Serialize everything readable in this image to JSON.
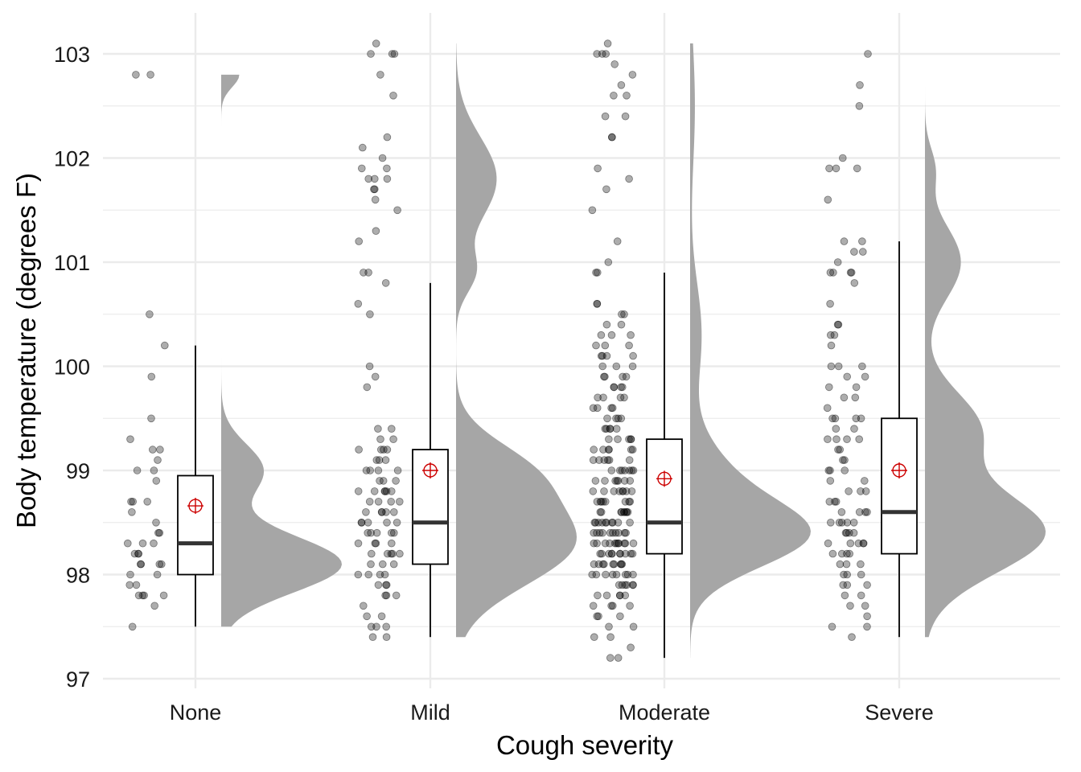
{
  "chart_data": {
    "type": "raincloud",
    "xlabel": "Cough severity",
    "ylabel": "Body temperature (degrees F)",
    "ylim": [
      97,
      103.2
    ],
    "yticks": [
      97,
      98,
      99,
      100,
      101,
      102,
      103
    ],
    "ytick_labels": [
      "97",
      "98",
      "99",
      "100",
      "101",
      "102",
      "103"
    ],
    "grid": true,
    "categories": [
      "None",
      "Mild",
      "Moderate",
      "Severe"
    ],
    "colors": {
      "density": "#a6a6a6",
      "points": "#000000",
      "box_stroke": "#000000",
      "mean_marker": "#cc0000",
      "grid": "#ebebeb"
    },
    "groups": [
      {
        "name": "None",
        "box": {
          "whisker_low": 97.5,
          "q1": 98.0,
          "median": 98.3,
          "q3": 98.95,
          "whisker_high": 100.2
        },
        "mean": 98.66,
        "density": {
          "range": [
            97.5,
            102.8
          ],
          "peak": 98.1,
          "sd": 0.27,
          "secondary": [
            [
              99.0,
              0.35,
              0.25
            ],
            [
              102.8,
              0.15,
              0.12
            ]
          ]
        },
        "points": [
          102.8,
          102.8,
          100.5,
          100.2,
          99.9,
          99.5,
          99.3,
          99.2,
          99.2,
          99.1,
          99.0,
          99.0,
          98.9,
          98.7,
          98.7,
          98.7,
          98.6,
          98.5,
          98.4,
          98.4,
          98.3,
          98.3,
          98.3,
          98.2,
          98.2,
          98.2,
          98.1,
          98.1,
          98.1,
          98.1,
          98.0,
          98.0,
          97.9,
          97.9,
          97.8,
          97.8,
          97.8,
          97.8,
          97.7,
          97.5
        ]
      },
      {
        "name": "Mild",
        "box": {
          "whisker_low": 97.4,
          "q1": 98.1,
          "median": 98.5,
          "q3": 99.2,
          "whisker_high": 100.8
        },
        "mean": 99.0,
        "density": {
          "range": [
            97.4,
            103.1
          ],
          "peak": 98.3,
          "sd": 0.4,
          "secondary": [
            [
              101.8,
              0.35,
              0.4
            ],
            [
              100.9,
              0.15,
              0.2
            ],
            [
              99.0,
              0.5,
              0.3
            ]
          ]
        },
        "points": [
          103.1,
          103.0,
          103.0,
          103.0,
          102.8,
          102.6,
          102.2,
          102.1,
          102.0,
          101.9,
          101.9,
          101.8,
          101.8,
          101.8,
          101.7,
          101.7,
          101.6,
          101.5,
          101.3,
          101.2,
          100.9,
          100.9,
          100.8,
          100.6,
          100.5,
          100.0,
          99.9,
          99.8,
          99.4,
          99.4,
          99.3,
          99.3,
          99.2,
          99.2,
          99.2,
          99.2,
          99.1,
          99.1,
          99.1,
          99.0,
          99.0,
          99.0,
          99.0,
          98.9,
          98.9,
          98.9,
          98.8,
          98.8,
          98.8,
          98.8,
          98.8,
          98.8,
          98.7,
          98.7,
          98.7,
          98.7,
          98.6,
          98.6,
          98.6,
          98.6,
          98.6,
          98.5,
          98.5,
          98.5,
          98.5,
          98.5,
          98.4,
          98.4,
          98.4,
          98.4,
          98.4,
          98.3,
          98.3,
          98.3,
          98.3,
          98.2,
          98.2,
          98.2,
          98.2,
          98.2,
          98.1,
          98.1,
          98.1,
          98.0,
          98.0,
          98.0,
          98.0,
          97.9,
          97.9,
          97.9,
          97.8,
          97.8,
          97.8,
          97.7,
          97.6,
          97.6,
          97.5,
          97.5,
          97.5,
          97.4,
          97.4
        ]
      },
      {
        "name": "Moderate",
        "box": {
          "whisker_low": 97.2,
          "q1": 98.2,
          "median": 98.5,
          "q3": 99.3,
          "whisker_high": 100.9
        },
        "mean": 98.92,
        "density": {
          "range": [
            97.2,
            103.1
          ],
          "peak": 98.35,
          "sd": 0.3,
          "secondary": [
            [
              98.8,
              0.45,
              0.4
            ],
            [
              100.3,
              0.12,
              0.5
            ],
            [
              102.5,
              0.05,
              0.6
            ]
          ]
        },
        "points": [
          103.1,
          103.0,
          103.0,
          103.0,
          102.9,
          102.8,
          102.7,
          102.6,
          102.6,
          102.4,
          102.4,
          102.2,
          102.2,
          101.9,
          101.8,
          101.7,
          101.5,
          101.2,
          101.0,
          100.9,
          100.9,
          100.6,
          100.6,
          100.5,
          100.5,
          100.4,
          100.4,
          100.3,
          100.3,
          100.3,
          100.2,
          100.2,
          100.2,
          100.1,
          100.1,
          100.1,
          100.1,
          100.0,
          100.0,
          100.0,
          99.9,
          99.9,
          99.9,
          99.9,
          99.8,
          99.8,
          99.8,
          99.8,
          99.7,
          99.7,
          99.7,
          99.7,
          99.6,
          99.6,
          99.6,
          99.6,
          99.5,
          99.5,
          99.5,
          99.5,
          99.4,
          99.4,
          99.4,
          99.4,
          99.4,
          99.3,
          99.3,
          99.3,
          99.3,
          99.3,
          99.2,
          99.2,
          99.2,
          99.2,
          99.2,
          99.2,
          99.1,
          99.1,
          99.1,
          99.1,
          99.1,
          99.1,
          99.0,
          99.0,
          99.0,
          99.0,
          99.0,
          99.0,
          99.0,
          98.9,
          98.9,
          98.9,
          98.9,
          98.9,
          98.9,
          98.9,
          98.8,
          98.8,
          98.8,
          98.8,
          98.8,
          98.8,
          98.8,
          98.8,
          98.7,
          98.7,
          98.7,
          98.7,
          98.7,
          98.7,
          98.7,
          98.7,
          98.6,
          98.6,
          98.6,
          98.6,
          98.6,
          98.6,
          98.6,
          98.6,
          98.6,
          98.5,
          98.5,
          98.5,
          98.5,
          98.5,
          98.5,
          98.5,
          98.5,
          98.5,
          98.5,
          98.4,
          98.4,
          98.4,
          98.4,
          98.4,
          98.4,
          98.4,
          98.4,
          98.4,
          98.4,
          98.3,
          98.3,
          98.3,
          98.3,
          98.3,
          98.3,
          98.3,
          98.3,
          98.3,
          98.3,
          98.3,
          98.2,
          98.2,
          98.2,
          98.2,
          98.2,
          98.2,
          98.2,
          98.2,
          98.2,
          98.2,
          98.1,
          98.1,
          98.1,
          98.1,
          98.1,
          98.1,
          98.1,
          98.1,
          98.1,
          98.0,
          98.0,
          98.0,
          98.0,
          98.0,
          98.0,
          98.0,
          98.0,
          97.9,
          97.9,
          97.9,
          97.9,
          97.9,
          97.9,
          97.8,
          97.8,
          97.8,
          97.8,
          97.8,
          97.7,
          97.7,
          97.7,
          97.7,
          97.6,
          97.6,
          97.6,
          97.5,
          97.5,
          97.4,
          97.4,
          97.3,
          97.2,
          97.2
        ]
      },
      {
        "name": "Severe",
        "box": {
          "whisker_low": 97.4,
          "q1": 98.2,
          "median": 98.6,
          "q3": 99.5,
          "whisker_high": 101.2
        },
        "mean": 99.0,
        "density": {
          "range": [
            97.4,
            103.0
          ],
          "peak": 98.4,
          "sd": 0.38,
          "secondary": [
            [
              99.4,
              0.45,
              0.35
            ],
            [
              101.0,
              0.3,
              0.35
            ],
            [
              101.9,
              0.08,
              0.2
            ]
          ]
        },
        "points": [
          103.0,
          102.7,
          102.5,
          102.0,
          101.9,
          101.9,
          101.9,
          101.6,
          101.2,
          101.2,
          101.1,
          101.1,
          101.0,
          100.9,
          100.9,
          100.9,
          100.9,
          100.8,
          100.6,
          100.4,
          100.4,
          100.3,
          100.3,
          100.2,
          100.0,
          100.0,
          100.0,
          99.9,
          99.9,
          99.8,
          99.8,
          99.7,
          99.7,
          99.6,
          99.5,
          99.5,
          99.5,
          99.5,
          99.4,
          99.4,
          99.3,
          99.3,
          99.3,
          99.3,
          99.2,
          99.2,
          99.1,
          99.1,
          99.0,
          99.0,
          99.0,
          98.9,
          98.9,
          98.8,
          98.8,
          98.8,
          98.7,
          98.7,
          98.7,
          98.6,
          98.6,
          98.6,
          98.6,
          98.5,
          98.5,
          98.5,
          98.5,
          98.5,
          98.4,
          98.4,
          98.4,
          98.4,
          98.3,
          98.3,
          98.3,
          98.3,
          98.3,
          98.2,
          98.2,
          98.2,
          98.2,
          98.1,
          98.1,
          98.1,
          98.0,
          98.0,
          98.0,
          97.9,
          97.9,
          97.9,
          97.8,
          97.8,
          97.7,
          97.7,
          97.6,
          97.5,
          97.5,
          97.4
        ]
      }
    ]
  }
}
